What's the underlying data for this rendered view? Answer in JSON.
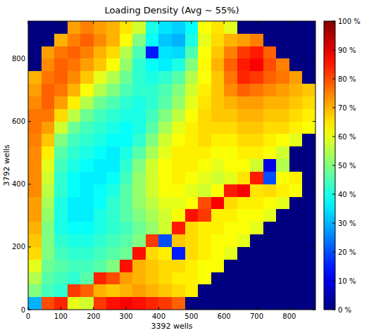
{
  "chart_data": {
    "type": "heatmap",
    "title": "Loading Density (Avg ~ 55%)",
    "x_label": "3392 wells",
    "y_label": "3792 wells",
    "xlim": [
      0,
      880
    ],
    "ylim": [
      0,
      920
    ],
    "xticks": [
      0,
      100,
      200,
      300,
      400,
      500,
      600,
      700,
      800
    ],
    "yticks": [
      0,
      200,
      400,
      600,
      800
    ],
    "color_range": [
      0,
      100
    ],
    "color_ticks": [
      {
        "value": 0,
        "label": "0 %"
      },
      {
        "value": 10,
        "label": "10 %"
      },
      {
        "value": 20,
        "label": "20 %"
      },
      {
        "value": 30,
        "label": "30 %"
      },
      {
        "value": 40,
        "label": "40 %"
      },
      {
        "value": 50,
        "label": "50 %"
      },
      {
        "value": 60,
        "label": "60 %"
      },
      {
        "value": 70,
        "label": "70 %"
      },
      {
        "value": 80,
        "label": "80 %"
      },
      {
        "value": 90,
        "label": "90 %"
      },
      {
        "value": 100,
        "label": "100 %"
      }
    ],
    "cells": [
      [
        0,
        0,
        0,
        72,
        75,
        72,
        70,
        65,
        58,
        40,
        35,
        33,
        38,
        62,
        65,
        60,
        0,
        0,
        0,
        0,
        0,
        0
      ],
      [
        0,
        0,
        70,
        75,
        78,
        74,
        70,
        62,
        50,
        38,
        32,
        30,
        40,
        60,
        66,
        70,
        72,
        75,
        0,
        0,
        0,
        0
      ],
      [
        0,
        72,
        76,
        78,
        75,
        70,
        66,
        55,
        45,
        15,
        35,
        34,
        45,
        62,
        68,
        75,
        82,
        85,
        78,
        0,
        0,
        0
      ],
      [
        0,
        74,
        78,
        76,
        72,
        68,
        62,
        52,
        42,
        38,
        36,
        40,
        50,
        63,
        70,
        78,
        85,
        88,
        80,
        75,
        0,
        0
      ],
      [
        70,
        76,
        78,
        74,
        68,
        60,
        55,
        48,
        42,
        40,
        42,
        46,
        55,
        62,
        68,
        76,
        84,
        82,
        78,
        76,
        72,
        0
      ],
      [
        72,
        78,
        76,
        70,
        62,
        55,
        50,
        45,
        42,
        42,
        45,
        50,
        58,
        64,
        68,
        74,
        78,
        76,
        74,
        72,
        70,
        68
      ],
      [
        74,
        78,
        72,
        64,
        55,
        48,
        45,
        42,
        40,
        42,
        46,
        52,
        60,
        65,
        68,
        70,
        72,
        72,
        70,
        70,
        68,
        66
      ],
      [
        76,
        76,
        66,
        56,
        48,
        44,
        42,
        40,
        40,
        44,
        50,
        56,
        62,
        66,
        68,
        68,
        70,
        70,
        68,
        68,
        66,
        64
      ],
      [
        76,
        72,
        58,
        48,
        44,
        42,
        40,
        38,
        40,
        46,
        54,
        60,
        64,
        66,
        66,
        66,
        68,
        68,
        66,
        66,
        64,
        62
      ],
      [
        75,
        68,
        50,
        44,
        42,
        40,
        38,
        38,
        42,
        50,
        58,
        62,
        64,
        66,
        64,
        64,
        66,
        66,
        64,
        62,
        60,
        0
      ],
      [
        74,
        64,
        46,
        42,
        40,
        38,
        36,
        40,
        46,
        54,
        60,
        64,
        64,
        64,
        62,
        62,
        64,
        64,
        62,
        58,
        0,
        0
      ],
      [
        74,
        60,
        44,
        40,
        38,
        36,
        36,
        42,
        50,
        58,
        62,
        64,
        64,
        62,
        60,
        62,
        62,
        58,
        10,
        55,
        0,
        0
      ],
      [
        74,
        58,
        42,
        38,
        36,
        36,
        38,
        44,
        52,
        58,
        62,
        64,
        62,
        60,
        58,
        60,
        65,
        85,
        20,
        62,
        64,
        0
      ],
      [
        74,
        56,
        42,
        38,
        36,
        38,
        40,
        46,
        52,
        58,
        62,
        62,
        60,
        58,
        62,
        85,
        88,
        65,
        66,
        64,
        62,
        0
      ],
      [
        72,
        54,
        40,
        36,
        36,
        38,
        42,
        46,
        52,
        56,
        60,
        60,
        62,
        80,
        88,
        66,
        64,
        64,
        62,
        60,
        0,
        0
      ],
      [
        72,
        52,
        40,
        36,
        36,
        40,
        42,
        46,
        50,
        54,
        58,
        62,
        86,
        82,
        64,
        64,
        62,
        62,
        60,
        0,
        0,
        0
      ],
      [
        70,
        50,
        40,
        38,
        38,
        40,
        42,
        44,
        48,
        52,
        58,
        85,
        66,
        64,
        64,
        62,
        62,
        60,
        0,
        0,
        0,
        0
      ],
      [
        68,
        50,
        42,
        40,
        40,
        42,
        44,
        46,
        50,
        82,
        20,
        68,
        66,
        64,
        62,
        62,
        60,
        0,
        0,
        0,
        0,
        0
      ],
      [
        66,
        50,
        44,
        42,
        42,
        44,
        46,
        48,
        86,
        66,
        64,
        15,
        66,
        64,
        62,
        60,
        0,
        0,
        0,
        0,
        0,
        0
      ],
      [
        60,
        48,
        46,
        44,
        44,
        46,
        50,
        86,
        70,
        68,
        66,
        66,
        64,
        62,
        62,
        0,
        0,
        0,
        0,
        0,
        0,
        0
      ],
      [
        55,
        46,
        44,
        42,
        46,
        84,
        80,
        72,
        70,
        68,
        66,
        64,
        64,
        62,
        0,
        0,
        0,
        0,
        0,
        0,
        0,
        0
      ],
      [
        50,
        44,
        42,
        82,
        78,
        70,
        68,
        70,
        72,
        70,
        68,
        66,
        64,
        0,
        0,
        0,
        0,
        0,
        0,
        0,
        0,
        0
      ],
      [
        30,
        80,
        84,
        60,
        58,
        82,
        86,
        88,
        86,
        84,
        82,
        78,
        0,
        0,
        0,
        0,
        0,
        0,
        0,
        0,
        0,
        0
      ]
    ]
  }
}
